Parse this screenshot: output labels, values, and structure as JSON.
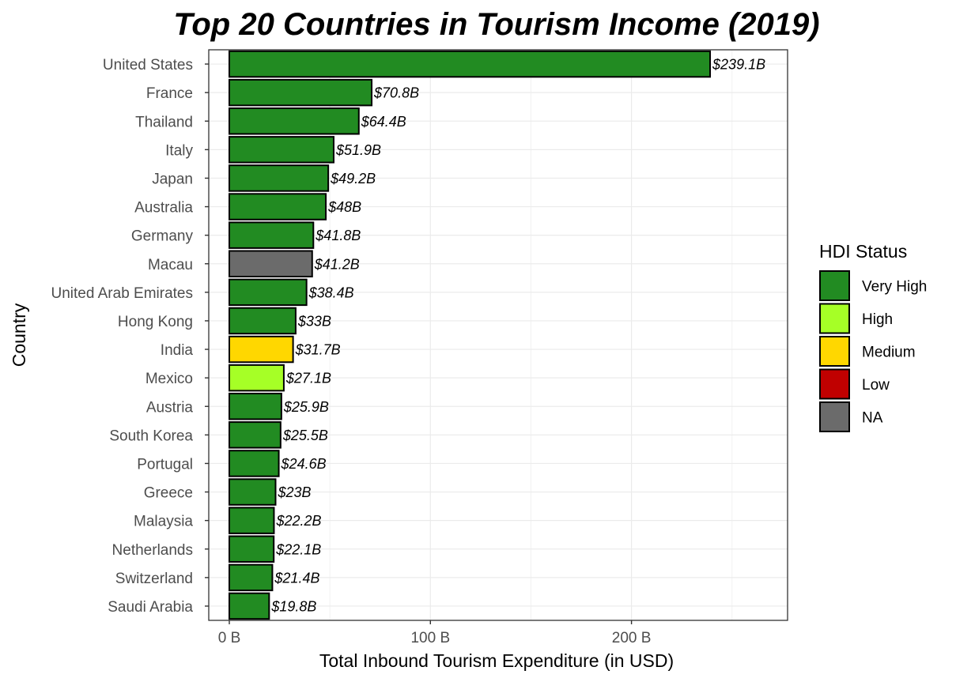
{
  "chart_data": {
    "type": "bar",
    "orientation": "horizontal",
    "title": "Top 20 Countries in Tourism Income (2019)",
    "xlabel": "Total Inbound Tourism Expenditure (in USD)",
    "ylabel": "Country",
    "xlim": [
      0,
      277
    ],
    "xticks": [
      {
        "value": 0,
        "label": "0 B"
      },
      {
        "value": 100,
        "label": "100 B"
      },
      {
        "value": 200,
        "label": "200 B"
      }
    ],
    "grid": true,
    "legend": {
      "title": "HDI Status",
      "position": "right",
      "entries": [
        {
          "label": "Very High",
          "color": "#228B22"
        },
        {
          "label": "High",
          "color": "#A6FF26"
        },
        {
          "label": "Medium",
          "color": "#FFD700"
        },
        {
          "label": "Low",
          "color": "#C00000"
        },
        {
          "label": "NA",
          "color": "#6B6B6B"
        }
      ]
    },
    "bars": [
      {
        "country": "United States",
        "value": 239.1,
        "label": "$239.1B",
        "hdi": "Very High"
      },
      {
        "country": "France",
        "value": 70.8,
        "label": "$70.8B",
        "hdi": "Very High"
      },
      {
        "country": "Thailand",
        "value": 64.4,
        "label": "$64.4B",
        "hdi": "Very High"
      },
      {
        "country": "Italy",
        "value": 51.9,
        "label": "$51.9B",
        "hdi": "Very High"
      },
      {
        "country": "Japan",
        "value": 49.2,
        "label": "$49.2B",
        "hdi": "Very High"
      },
      {
        "country": "Australia",
        "value": 48,
        "label": "$48B",
        "hdi": "Very High"
      },
      {
        "country": "Germany",
        "value": 41.8,
        "label": "$41.8B",
        "hdi": "Very High"
      },
      {
        "country": "Macau",
        "value": 41.2,
        "label": "$41.2B",
        "hdi": "NA"
      },
      {
        "country": "United Arab Emirates",
        "value": 38.4,
        "label": "$38.4B",
        "hdi": "Very High"
      },
      {
        "country": "Hong Kong",
        "value": 33,
        "label": "$33B",
        "hdi": "Very High"
      },
      {
        "country": "India",
        "value": 31.7,
        "label": "$31.7B",
        "hdi": "Medium"
      },
      {
        "country": "Mexico",
        "value": 27.1,
        "label": "$27.1B",
        "hdi": "High"
      },
      {
        "country": "Austria",
        "value": 25.9,
        "label": "$25.9B",
        "hdi": "Very High"
      },
      {
        "country": "South Korea",
        "value": 25.5,
        "label": "$25.5B",
        "hdi": "Very High"
      },
      {
        "country": "Portugal",
        "value": 24.6,
        "label": "$24.6B",
        "hdi": "Very High"
      },
      {
        "country": "Greece",
        "value": 23,
        "label": "$23B",
        "hdi": "Very High"
      },
      {
        "country": "Malaysia",
        "value": 22.2,
        "label": "$22.2B",
        "hdi": "Very High"
      },
      {
        "country": "Netherlands",
        "value": 22.1,
        "label": "$22.1B",
        "hdi": "Very High"
      },
      {
        "country": "Switzerland",
        "value": 21.4,
        "label": "$21.4B",
        "hdi": "Very High"
      },
      {
        "country": "Saudi Arabia",
        "value": 19.8,
        "label": "$19.8B",
        "hdi": "Very High"
      }
    ]
  }
}
